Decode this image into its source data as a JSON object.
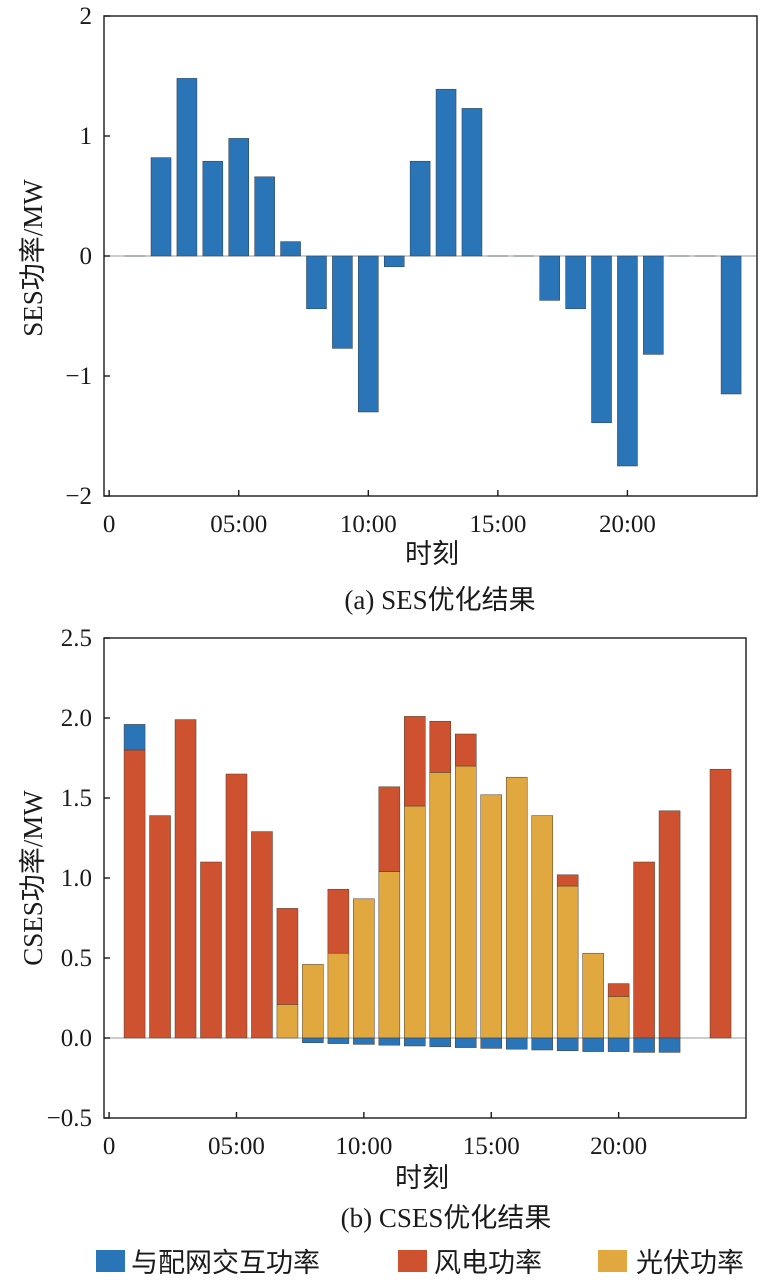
{
  "chart_data": [
    {
      "type": "bar",
      "caption": "(a) SES优化结果",
      "xlabel": "时刻",
      "ylabel": "SES功率/MW",
      "xlim": [
        -0.2,
        25
      ],
      "ylim": [
        -2,
        2
      ],
      "xticks": [
        0,
        5,
        10,
        15,
        20
      ],
      "xtick_labels": [
        "0",
        "05:00",
        "10:00",
        "15:00",
        "20:00"
      ],
      "yticks": [
        -2,
        -1,
        0,
        1,
        2
      ],
      "ytick_labels": [
        "−2",
        "−1",
        "0",
        "1",
        "2"
      ],
      "zero_line": true,
      "colors": {
        "bar": "#2a75b8"
      },
      "hours": [
        1,
        2,
        3,
        4,
        5,
        6,
        7,
        8,
        9,
        10,
        11,
        12,
        13,
        14,
        15,
        16,
        17,
        18,
        19,
        20,
        21,
        22,
        23,
        24
      ],
      "values": [
        0,
        0.82,
        1.48,
        0.79,
        0.98,
        0.66,
        0.12,
        -0.44,
        -0.77,
        -1.3,
        -0.09,
        0.79,
        1.39,
        1.23,
        0,
        0,
        -0.37,
        -0.44,
        -1.39,
        -1.75,
        -0.82,
        0,
        0,
        -1.15
      ]
    },
    {
      "type": "bar",
      "stacked": true,
      "caption": "(b) CSES优化结果",
      "xlabel": "时刻",
      "ylabel": "CSES功率/MW",
      "xlim": [
        -0.2,
        25
      ],
      "ylim": [
        -0.5,
        2.5
      ],
      "xticks": [
        0,
        5,
        10,
        15,
        20
      ],
      "xtick_labels": [
        "0",
        "05:00",
        "10:00",
        "15:00",
        "20:00"
      ],
      "yticks": [
        -0.5,
        0,
        0.5,
        1,
        1.5,
        2,
        2.5
      ],
      "ytick_labels": [
        "−0.5",
        "0.0",
        "0.5",
        "1.0",
        "1.5",
        "2.0",
        "2.5"
      ],
      "zero_line": true,
      "hours": [
        1,
        2,
        3,
        4,
        5,
        6,
        7,
        8,
        9,
        10,
        11,
        12,
        13,
        14,
        15,
        16,
        17,
        18,
        19,
        20,
        21,
        22,
        23,
        24
      ],
      "series": [
        {
          "name": "光伏功率",
          "color": "#e2a840",
          "values": [
            0,
            0,
            0,
            0,
            0,
            0,
            0.21,
            0.46,
            0.53,
            0.87,
            1.04,
            1.45,
            1.66,
            1.7,
            1.52,
            1.63,
            1.39,
            0.95,
            0.53,
            0.26,
            0,
            0,
            0,
            0
          ]
        },
        {
          "name": "风电功率",
          "color": "#cf5230",
          "values": [
            1.8,
            1.39,
            1.99,
            1.1,
            1.65,
            1.29,
            0.6,
            0,
            0.4,
            0,
            0.53,
            0.56,
            0.32,
            0.2,
            0,
            0,
            0,
            0.07,
            0,
            0.08,
            1.1,
            1.42,
            0,
            1.68
          ]
        },
        {
          "name": "与配网交互功率",
          "color": "#2a75b8",
          "values": [
            0.16,
            0,
            0,
            0,
            0,
            0,
            0,
            -0.03,
            -0.035,
            -0.04,
            -0.045,
            -0.05,
            -0.055,
            -0.06,
            -0.065,
            -0.07,
            -0.075,
            -0.08,
            -0.085,
            -0.085,
            -0.09,
            -0.09,
            0,
            0
          ]
        }
      ],
      "legend": {
        "placement": "bottom",
        "items": [
          "与配网交互功率",
          "风电功率",
          "光伏功率"
        ]
      }
    }
  ]
}
